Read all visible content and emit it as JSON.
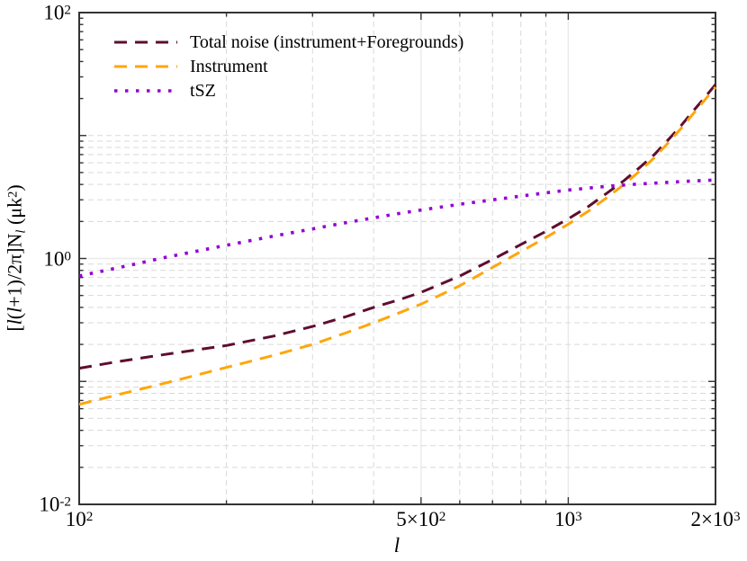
{
  "chart_data": {
    "type": "line",
    "xscale": "log",
    "yscale": "log",
    "xlim": [
      100,
      2000
    ],
    "ylim": [
      0.01,
      100
    ],
    "xlabel": "l",
    "ylabel": "[l(l+1)/2π]N_l (μk^2)",
    "ylabel_parts": [
      {
        "t": "[",
        "style": "roman"
      },
      {
        "t": "l",
        "style": "italic"
      },
      {
        "t": "(",
        "style": "roman"
      },
      {
        "t": "l",
        "style": "italic"
      },
      {
        "t": "+1)/2π]N",
        "style": "roman"
      },
      {
        "t": "l",
        "style": "italic-sub"
      },
      {
        "t": " (μk",
        "style": "roman"
      },
      {
        "t": "2",
        "style": "sup"
      },
      {
        "t": ")",
        "style": "roman"
      }
    ],
    "x_tick_labels": [
      {
        "main": "10",
        "sup": "2",
        "value": 100
      },
      {
        "main": "5×10",
        "sup": "2",
        "value": 500
      },
      {
        "main": "10",
        "sup": "3",
        "value": 1000
      },
      {
        "main": "2×10",
        "sup": "3",
        "value": 2000
      }
    ],
    "y_tick_labels": [
      {
        "main": "10",
        "sup": "2",
        "value": 100
      },
      {
        "main": "10",
        "sup": "0",
        "value": 1
      },
      {
        "main": "10",
        "sup": "-2",
        "value": 0.01
      }
    ],
    "x_major_ticks": [
      100,
      500,
      1000,
      2000
    ],
    "x_minor_ticks": [
      200,
      300,
      400,
      600,
      700,
      800,
      900
    ],
    "y_major_ticks": [
      0.01,
      0.1,
      1,
      10,
      100
    ],
    "y_minor_ticks": [
      0.02,
      0.03,
      0.04,
      0.05,
      0.06,
      0.07,
      0.08,
      0.09,
      0.2,
      0.3,
      0.4,
      0.5,
      0.6,
      0.7,
      0.8,
      0.9,
      2,
      3,
      4,
      5,
      6,
      7,
      8,
      9,
      20,
      30,
      40,
      50,
      60,
      70,
      80,
      90
    ],
    "grid": {
      "x_solid": [
        500,
        1000
      ],
      "x_dashed": [
        200,
        300,
        400,
        600,
        700,
        800,
        900
      ],
      "y_solid": [
        1
      ],
      "y_dashed": [
        0.02,
        0.03,
        0.04,
        0.05,
        0.06,
        0.07,
        0.08,
        0.09,
        0.1,
        0.2,
        0.3,
        0.4,
        0.5,
        0.6,
        0.7,
        0.8,
        0.9,
        2,
        3,
        4,
        5,
        6,
        7,
        8,
        9,
        10
      ]
    },
    "legend_position": "top-left",
    "series": [
      {
        "name": "Total noise (instrument+Foregrounds)",
        "color": "#5e0d30",
        "style": "dashed",
        "points": [
          [
            100,
            0.128
          ],
          [
            120,
            0.145
          ],
          [
            150,
            0.166
          ],
          [
            200,
            0.196
          ],
          [
            250,
            0.234
          ],
          [
            300,
            0.28
          ],
          [
            350,
            0.335
          ],
          [
            400,
            0.4
          ],
          [
            450,
            0.46
          ],
          [
            500,
            0.53
          ],
          [
            600,
            0.72
          ],
          [
            700,
            0.98
          ],
          [
            800,
            1.3
          ],
          [
            900,
            1.66
          ],
          [
            1000,
            2.1
          ],
          [
            1100,
            2.65
          ],
          [
            1200,
            3.4
          ],
          [
            1300,
            4.3
          ],
          [
            1400,
            5.5
          ],
          [
            1500,
            7.0
          ],
          [
            1600,
            9.2
          ],
          [
            1700,
            12.0
          ],
          [
            1800,
            15.8
          ],
          [
            1900,
            20.3
          ],
          [
            2000,
            26.0
          ]
        ]
      },
      {
        "name": "Instrument",
        "color": "#ffa60a",
        "style": "dashed",
        "points": [
          [
            100,
            0.065
          ],
          [
            120,
            0.078
          ],
          [
            150,
            0.097
          ],
          [
            200,
            0.13
          ],
          [
            250,
            0.163
          ],
          [
            300,
            0.2
          ],
          [
            350,
            0.247
          ],
          [
            400,
            0.3
          ],
          [
            450,
            0.36
          ],
          [
            500,
            0.425
          ],
          [
            600,
            0.6
          ],
          [
            700,
            0.845
          ],
          [
            800,
            1.14
          ],
          [
            900,
            1.48
          ],
          [
            1000,
            1.9
          ],
          [
            1100,
            2.43
          ],
          [
            1200,
            3.13
          ],
          [
            1300,
            4.0
          ],
          [
            1400,
            5.15
          ],
          [
            1500,
            6.6
          ],
          [
            1600,
            8.7
          ],
          [
            1700,
            11.4
          ],
          [
            1800,
            15.0
          ],
          [
            1900,
            19.4
          ],
          [
            2000,
            24.7
          ]
        ]
      },
      {
        "name": "tSZ",
        "color": "#9400d3",
        "style": "dotted",
        "points": [
          [
            100,
            0.72
          ],
          [
            120,
            0.84
          ],
          [
            150,
            1.02
          ],
          [
            200,
            1.28
          ],
          [
            250,
            1.52
          ],
          [
            300,
            1.74
          ],
          [
            350,
            1.95
          ],
          [
            400,
            2.14
          ],
          [
            450,
            2.32
          ],
          [
            500,
            2.48
          ],
          [
            600,
            2.76
          ],
          [
            700,
            3.0
          ],
          [
            800,
            3.22
          ],
          [
            900,
            3.42
          ],
          [
            1000,
            3.6
          ],
          [
            1100,
            3.74
          ],
          [
            1200,
            3.86
          ],
          [
            1300,
            3.96
          ],
          [
            1400,
            4.04
          ],
          [
            1500,
            4.1
          ],
          [
            1600,
            4.16
          ],
          [
            1700,
            4.22
          ],
          [
            1800,
            4.27
          ],
          [
            1900,
            4.31
          ],
          [
            2000,
            4.35
          ]
        ]
      }
    ],
    "colors": {
      "frame": "#333333",
      "grid_major": "#e9e9e9",
      "grid_minor": "#d9d9d9",
      "text": "#000000"
    }
  }
}
